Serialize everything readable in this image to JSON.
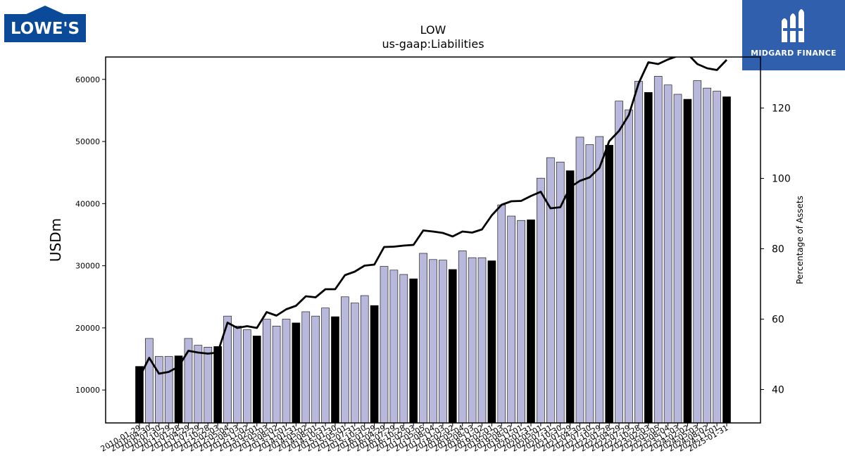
{
  "logos": {
    "lowes": {
      "text": "LOWE'S",
      "color": "#0a4a98"
    },
    "midgard": {
      "text": "MIDGARD FINANCE",
      "color": "#2f5fad"
    }
  },
  "chart_data": {
    "type": "bar",
    "title": "LOW",
    "subtitle": "us-gaap:Liabilities",
    "ylabel": "USDm",
    "y2label": "Percentage of Assets",
    "ylim": [
      4700,
      63600
    ],
    "y2lim": [
      30.5,
      134.5
    ],
    "yticks": [
      10000,
      20000,
      30000,
      40000,
      50000,
      60000
    ],
    "y2ticks": [
      40,
      60,
      80,
      100,
      120
    ],
    "legend": "none",
    "grid": false,
    "colors": {
      "quarterly_bar": "#b8b8dc",
      "annual_bar": "#000000",
      "line": "#000000"
    },
    "categories": [
      "2010-01-29",
      "2010-04-30",
      "2010-07-30",
      "2010-10-29",
      "2011-01-28",
      "2011-04-29",
      "2011-07-29",
      "2011-10-28",
      "2012-02-03",
      "2012-05-04",
      "2012-08-03",
      "2012-11-02",
      "2013-02-01",
      "2013-05-03",
      "2013-08-02",
      "2013-11-01",
      "2014-01-31",
      "2014-05-02",
      "2014-08-01",
      "2014-10-31",
      "2015-01-30",
      "2015-05-01",
      "2015-07-31",
      "2015-10-30",
      "2016-01-29",
      "2016-04-29",
      "2016-07-29",
      "2016-10-28",
      "2017-02-03",
      "2017-05-05",
      "2017-08-04",
      "2017-11-03",
      "2018-02-02",
      "2018-05-04",
      "2018-08-03",
      "2018-11-02",
      "2019-02-01",
      "2019-05-03",
      "2019-08-02",
      "2019-11-01",
      "2020-01-31",
      "2020-05-01",
      "2020-07-31",
      "2020-10-30",
      "2021-01-29",
      "2021-04-30",
      "2021-07-30",
      "2021-10-29",
      "2022-01-28",
      "2022-04-29",
      "2022-07-29",
      "2022-10-28",
      "2023-02-03",
      "2023-05-05",
      "2023-08-04",
      "2023-11-03",
      "2024-02-02",
      "2024-05-03",
      "2024-08-02",
      "2024-11-01",
      "2025-01-31"
    ],
    "tick_labels_shown": [
      "2010-01-29",
      "2010-04-30",
      "2010-07-30",
      "2010-10-29",
      "2011-01-28",
      "2011-04-29",
      "2011-07-29",
      "2011-10-28",
      "2012-02-03",
      "2012-05-04",
      "2012-08-03",
      "2012-11-02",
      "2013-02-01",
      "2013-05-03",
      "2013-08-02",
      "2013-11-01",
      "2014-01-31",
      "2014-05-02",
      "2014-08-01",
      "2014-10-31",
      "2015-01-30",
      "2015-05-01",
      "2015-07-31",
      "2015-10-30",
      "2016-01-29",
      "2016-04-29",
      "2016-07-29",
      "2016-10-28",
      "2017-02-03",
      "2017-05-05",
      "2017-08-04",
      "2017-11-03",
      "2018-02-02",
      "2018-05-04",
      "2018-08-03",
      "2018-11-02",
      "2019-02-01",
      "2019-05-03",
      "2019-08-02",
      "2019-11-01",
      "2020-01-31",
      "2020-05-01",
      "2020-07-31",
      "2020-10-30",
      "2021-01-29",
      "2021-04-30",
      "2021-07-30",
      "2021-10-29",
      "2022-01-28",
      "2022-04-29",
      "2022-07-29",
      "2022-10-28",
      "2023-02-03",
      "2023-05-05",
      "2023-08-04",
      "2023-11-03",
      "2024-02-02",
      "2024-05-03",
      "2024-08-02",
      "2024-11-01",
      "2025-01-31"
    ],
    "series": [
      {
        "type": "bar",
        "values": [
          13800,
          18300,
          15400,
          15400,
          15500,
          18300,
          17200,
          16900,
          17000,
          21900,
          20300,
          19700,
          18700,
          21400,
          20300,
          21400,
          20800,
          22600,
          21900,
          23200,
          21800,
          25000,
          24000,
          25200,
          23600,
          29900,
          29300,
          28600,
          27900,
          32000,
          31000,
          30900,
          29400,
          32400,
          31300,
          31300,
          30800,
          39800,
          38000,
          37300,
          37400,
          44100,
          47400,
          46700,
          45300,
          50700,
          49500,
          50800,
          49400,
          56500,
          55100,
          59700,
          57900,
          60500,
          59100,
          57600,
          56800,
          59800,
          58600,
          58100,
          57200
        ],
        "annual": [
          true,
          false,
          false,
          false,
          true,
          false,
          false,
          false,
          true,
          false,
          false,
          false,
          true,
          false,
          false,
          false,
          true,
          false,
          false,
          false,
          true,
          false,
          false,
          false,
          true,
          false,
          false,
          false,
          true,
          false,
          false,
          false,
          true,
          false,
          false,
          false,
          true,
          false,
          false,
          false,
          true,
          false,
          false,
          false,
          true,
          false,
          false,
          false,
          true,
          false,
          false,
          false,
          true,
          false,
          false,
          false,
          true,
          false,
          false,
          false,
          true
        ]
      },
      {
        "type": "line",
        "axis": "secondary",
        "values": [
          43.5,
          49,
          44.5,
          45,
          46.5,
          51,
          50.5,
          50.2,
          50.5,
          59,
          57.5,
          58,
          57.5,
          62,
          61,
          62.8,
          63.8,
          66.5,
          66.2,
          68.5,
          68.5,
          72.5,
          73.5,
          75.2,
          75.5,
          80.5,
          80.6,
          80.9,
          81.1,
          85.2,
          84.9,
          84.5,
          83.5,
          84.9,
          84.6,
          85.5,
          89.5,
          92.5,
          93.5,
          93.6,
          95,
          96.2,
          91.5,
          91.8,
          97.5,
          99.3,
          100.3,
          103,
          110.6,
          113.5,
          118,
          127,
          133,
          132.5,
          133.8,
          134.8,
          135.4,
          132.5,
          131.3,
          130.8,
          133.7
        ]
      }
    ]
  }
}
